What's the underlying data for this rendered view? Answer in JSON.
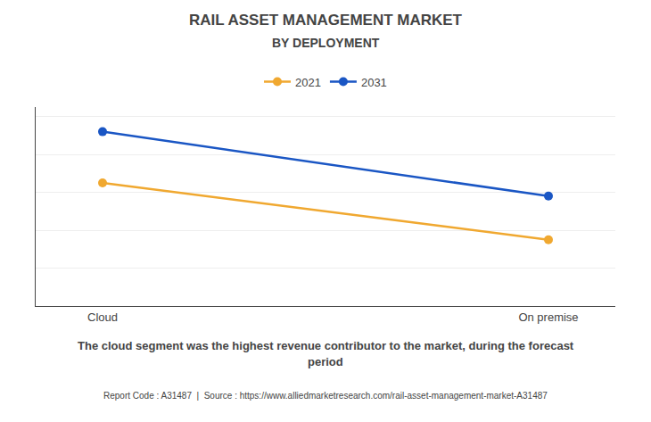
{
  "chart_data": {
    "type": "line",
    "title": "RAIL ASSET MANAGEMENT MARKET",
    "subtitle": "BY DEPLOYMENT",
    "categories": [
      "Cloud",
      "On premise"
    ],
    "series": [
      {
        "name": "2021",
        "color": "#F0A830",
        "values": [
          0.65,
          0.35
        ]
      },
      {
        "name": "2031",
        "color": "#1A56C4",
        "values": [
          0.92,
          0.58
        ]
      }
    ],
    "ylim": [
      0.0,
      1.05
    ],
    "yticks": [
      0.2,
      0.4,
      0.6,
      0.8,
      1.0
    ],
    "grid": true,
    "tick_labels": "x",
    "legend": "top",
    "marker": "circle",
    "annotations": [
      "The cloud segment was the highest revenue contributor to the market, during the forecast",
      "period",
      "Report Code : A31487  |  Source : https://www.alliedmarketresearch.com/rail-asset-management-market-A31487"
    ]
  }
}
